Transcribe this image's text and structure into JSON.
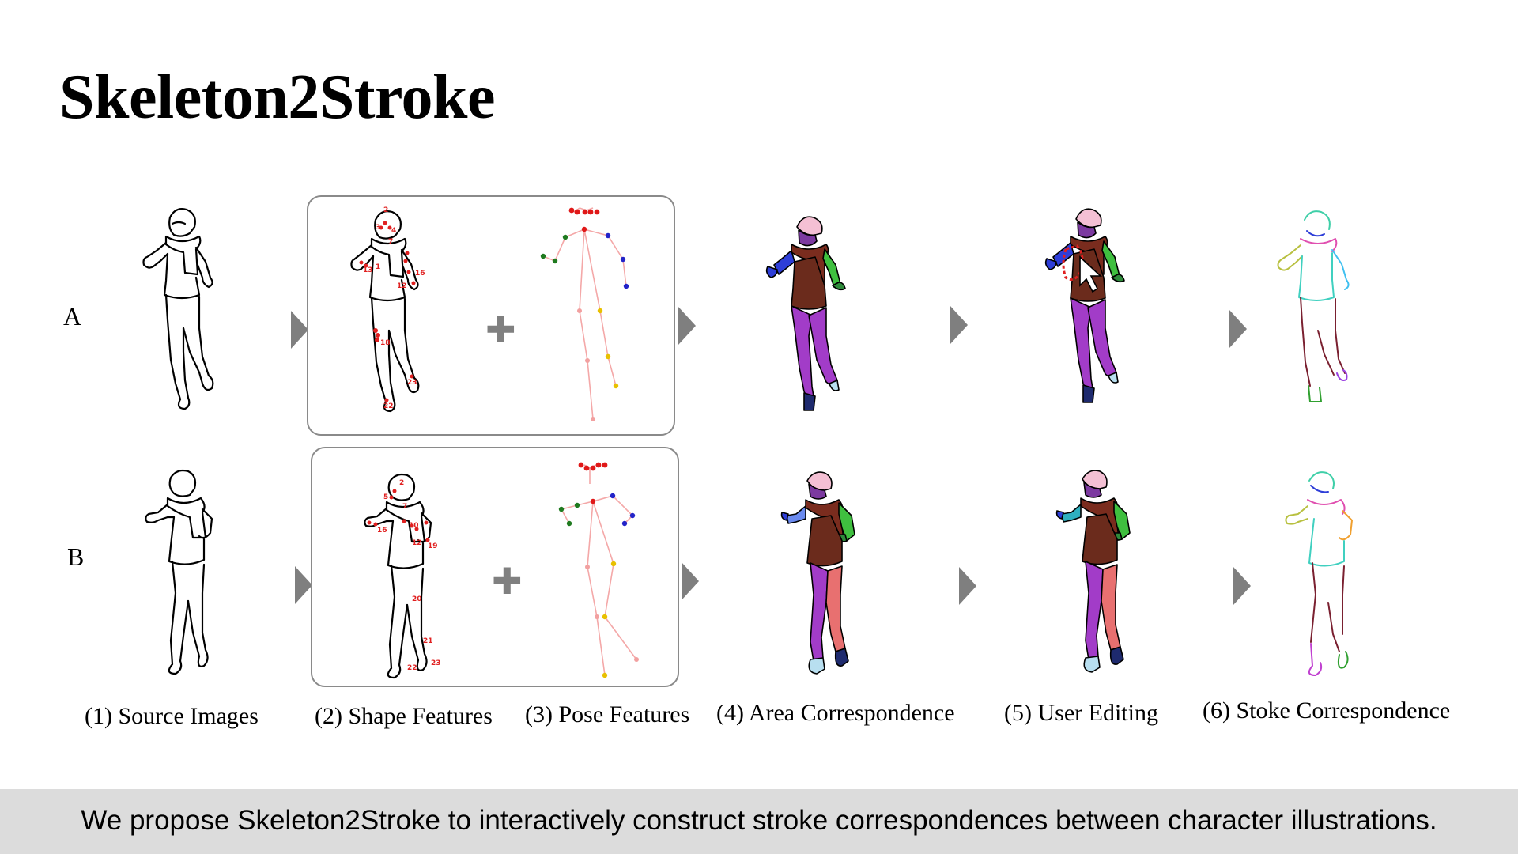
{
  "title": "Skeleton2Stroke",
  "rows": [
    "A",
    "B"
  ],
  "captions": [
    "(1) Source Images",
    "(2) Shape Features",
    "(3) Pose Features",
    "(4) Area Correspondence",
    "(5) User Editing",
    "(6) Stoke Correspondence"
  ],
  "footer": "We propose Skeleton2Stroke to interactively construct stroke correspondences between character illustrations.",
  "shape_feature_labels_a": [
    "2",
    "3",
    "4",
    "7",
    "1",
    "13",
    "12",
    "16",
    "18",
    "23",
    "22"
  ],
  "shape_feature_labels_b": [
    "2",
    "5",
    "7",
    "10",
    "16",
    "12",
    "19",
    "20",
    "21",
    "22",
    "23"
  ],
  "colors": {
    "outline": "#000000",
    "shape_marker": "#e02020",
    "pose_line": "#f4a8a8",
    "pose_red": "#e01818",
    "pose_blue": "#2323c8",
    "pose_green": "#1f7a1f",
    "pose_yellow": "#e8c000",
    "pose_pink": "#f2a0a0",
    "hair": "#f4c0d4",
    "face": "#7c3aa0",
    "scarf": "#7a2c1e",
    "shirt": "#6b2b1c",
    "sleeve_green": "#3fbf3f",
    "sleeve_blue": "#2e3ed8",
    "pants": "#a23cc8",
    "shoe_light": "#b8dff0",
    "shoe_dark": "#1e2a6e",
    "arrow": "#7f7f7f",
    "banner": "#dcdcdc"
  }
}
